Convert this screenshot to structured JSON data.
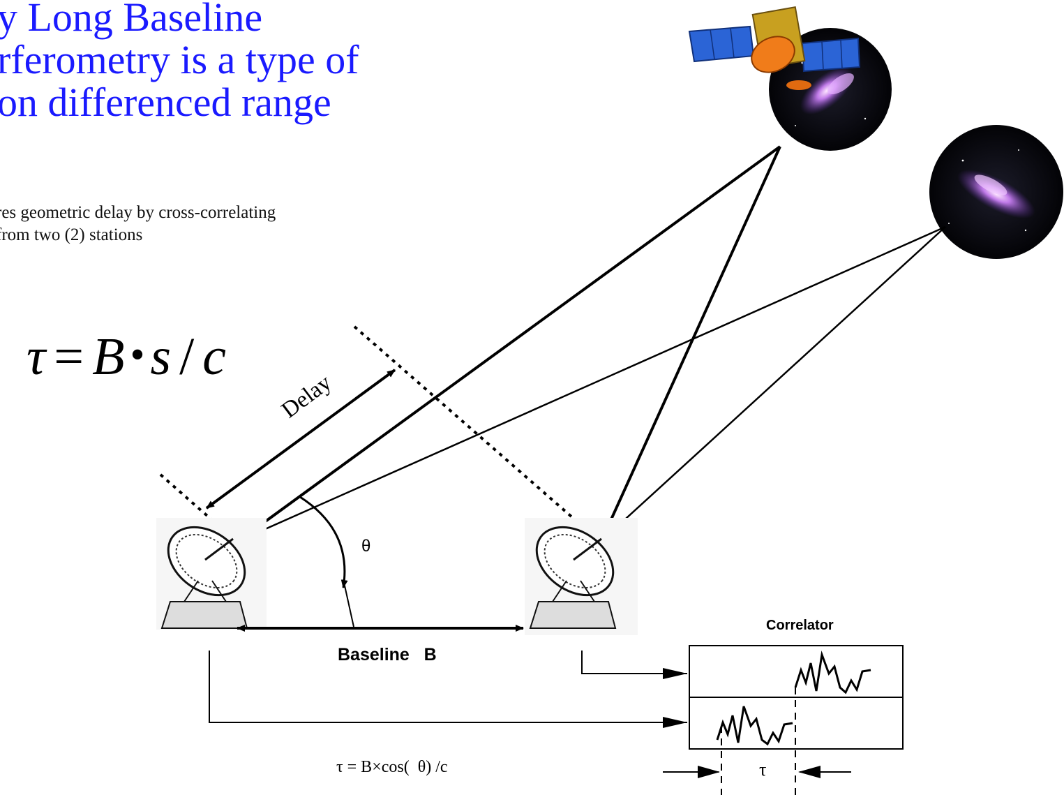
{
  "title": {
    "line1": "y Long Baseline",
    "line2": "rferometry is a type of",
    "line3": "on differenced range"
  },
  "subtitle": {
    "line1": "res geometric delay by cross-correlating",
    "line2": "from two (2) stations"
  },
  "formula": {
    "tau": "τ",
    "equals": "=",
    "b": "B",
    "dot": "•",
    "s": "s",
    "slash": "/",
    "c": "c"
  },
  "diagram": {
    "delay_label": "Delay",
    "theta_label": "θ",
    "baseline_label": "Baseline   B",
    "correlator_label": "Correlator",
    "equation_label": "τ = B×cos(  θ) /c",
    "tau_marker": "τ"
  },
  "colors": {
    "title": "#1a1aff",
    "lines": "#000000",
    "solar_panel": "#2b64d6",
    "dish": "#f07c1a",
    "galaxy": "#7a3fb8",
    "space": "#06060c"
  },
  "icons": {
    "spacecraft": "spacecraft-icon",
    "galaxy_top": "galaxy-icon",
    "galaxy_right": "galaxy-icon",
    "antenna_left": "radio-telescope-icon",
    "antenna_right": "radio-telescope-icon"
  }
}
